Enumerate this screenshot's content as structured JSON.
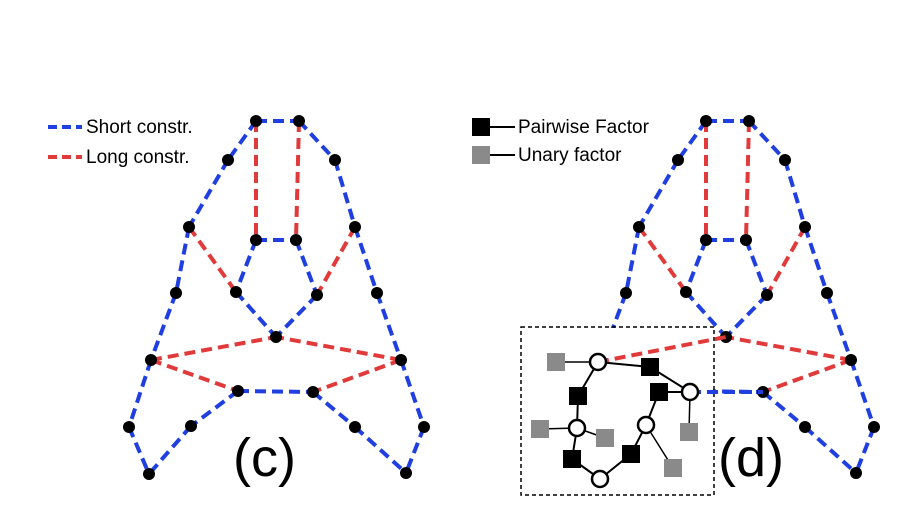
{
  "legend_left": {
    "short_label": "Short constr.",
    "long_label": "Long constr."
  },
  "legend_right": {
    "pairwise_label": "Pairwise Factor",
    "unary_label": "Unary factor"
  },
  "panels": {
    "left_label": "(c)",
    "right_label": "(d)"
  },
  "colors": {
    "short_constraint": "#1f3fe0",
    "long_constraint": "#e03a3a",
    "node": "#000000",
    "pairwise_factor": "#000000",
    "unary_factor": "#8a8a8a"
  }
}
